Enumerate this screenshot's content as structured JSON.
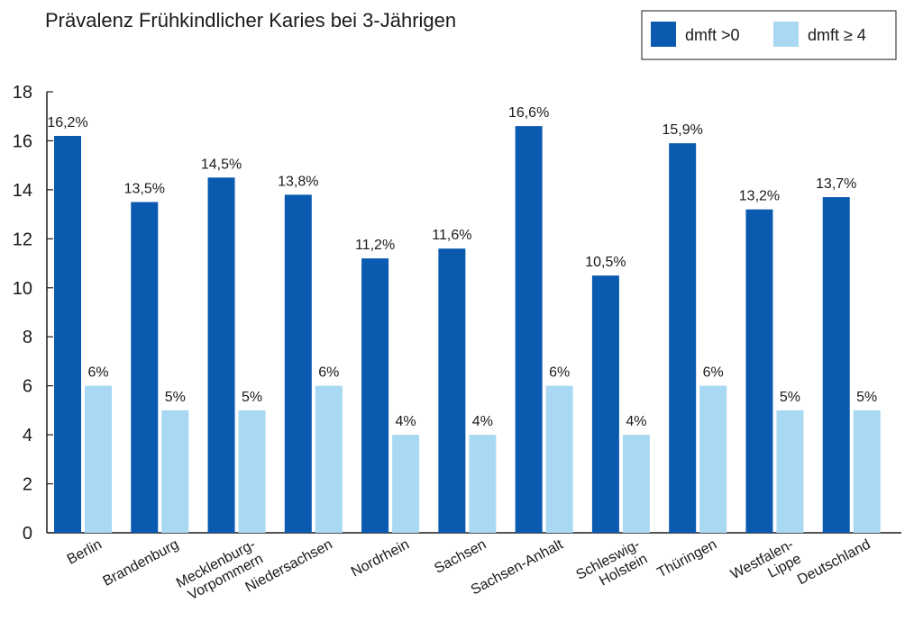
{
  "chart_data": {
    "type": "bar",
    "title": "Prävalenz Frühkindlicher Karies bei 3-Jährigen",
    "xlabel": "",
    "ylabel": "",
    "ylim": [
      0,
      18
    ],
    "yticks": [
      0,
      2,
      4,
      6,
      8,
      10,
      12,
      14,
      16,
      18
    ],
    "grid": false,
    "legend_position": "top-right",
    "categories": [
      [
        "Berlin"
      ],
      [
        "Brandenburg"
      ],
      [
        "Mecklenburg-",
        "Vorpommern"
      ],
      [
        "Niedersachsen"
      ],
      [
        "Nordrhein"
      ],
      [
        "Sachsen"
      ],
      [
        "Sachsen-Anhalt"
      ],
      [
        "Schleswig-",
        "Holstein"
      ],
      [
        "Thüringen"
      ],
      [
        "Westfalen-",
        "Lippe"
      ],
      [
        "Deutschland"
      ]
    ],
    "series": [
      {
        "name": "dmft >0",
        "color": "#0a5ab0",
        "values": [
          16.2,
          13.5,
          14.5,
          13.8,
          11.2,
          11.6,
          16.6,
          10.5,
          15.9,
          13.2,
          13.7
        ],
        "labels": [
          "16,2%",
          "13,5%",
          "14,5%",
          "13,8%",
          "11,2%",
          "11,6%",
          "16,6%",
          "10,5%",
          "15,9%",
          "13,2%",
          "13,7%"
        ]
      },
      {
        "name": "dmft ≥ 4",
        "color": "#a9d8f3",
        "values": [
          6,
          5,
          5,
          6,
          4,
          4,
          6,
          4,
          6,
          5,
          5
        ],
        "labels": [
          "6%",
          "5%",
          "5%",
          "6%",
          "4%",
          "4%",
          "6%",
          "4%",
          "6%",
          "5%",
          "5%"
        ]
      }
    ]
  }
}
